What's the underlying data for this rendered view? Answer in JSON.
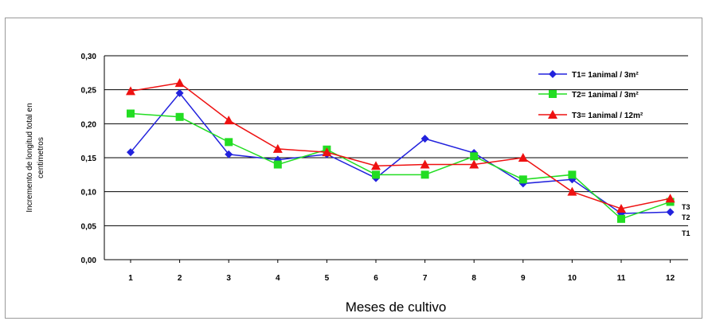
{
  "chart_data": {
    "type": "line",
    "title": "",
    "xlabel": "Meses de cultivo",
    "ylabel_lines": [
      "Incremento de longitud total en",
      "centimetros"
    ],
    "x": [
      "1",
      "2",
      "3",
      "4",
      "5",
      "6",
      "7",
      "8",
      "9",
      "10",
      "11",
      "12"
    ],
    "ylim": [
      0,
      0.3
    ],
    "yticks": [
      "0,00",
      "0,05",
      "0,10",
      "0,15",
      "0,20",
      "0,25",
      "0,30"
    ],
    "grid": true,
    "legend_position": "top-right",
    "series": [
      {
        "name": "T1= 1animal / 3m²",
        "color": "#2222dd",
        "marker": "diamond",
        "end_label": "T1",
        "values": [
          0.158,
          0.245,
          0.155,
          0.147,
          0.155,
          0.12,
          0.178,
          0.157,
          0.112,
          0.118,
          0.068,
          0.07
        ]
      },
      {
        "name": "T2= 1animal / 3m²",
        "color": "#22dd22",
        "marker": "square",
        "end_label": "T2",
        "values": [
          0.215,
          0.21,
          0.173,
          0.14,
          0.162,
          0.125,
          0.125,
          0.152,
          0.118,
          0.125,
          0.06,
          0.085
        ]
      },
      {
        "name": "T3= 1animal / 12m²",
        "color": "#ee1111",
        "marker": "triangle",
        "end_label": "T3",
        "values": [
          0.248,
          0.26,
          0.205,
          0.163,
          0.158,
          0.138,
          0.14,
          0.14,
          0.15,
          0.1,
          0.075,
          0.09
        ]
      }
    ]
  }
}
